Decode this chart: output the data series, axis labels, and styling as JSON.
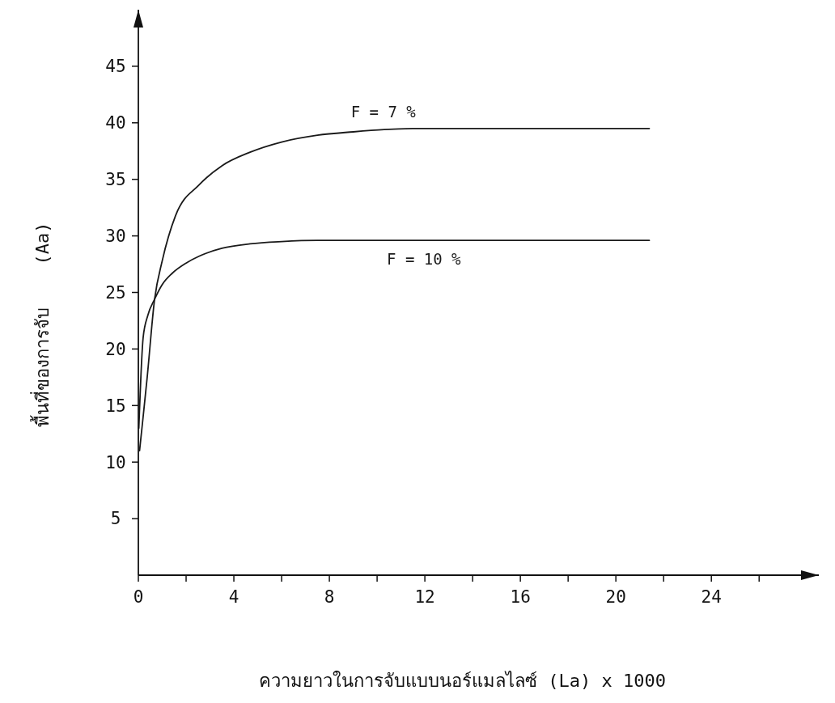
{
  "chart_data": {
    "type": "line",
    "xlabel": "ความยาวในการจับแบบนอร์แมลไลซ์ (La) x 1000",
    "ylabel": "พื้นที่ของการจับ    (Aa)",
    "xlim": [
      0,
      28.5
    ],
    "ylim": [
      0,
      50
    ],
    "xticks": [
      0,
      {
        "value": 2,
        "label": null
      },
      4,
      {
        "value": 6,
        "label": null
      },
      8,
      {
        "value": 10,
        "label": null
      },
      12,
      {
        "value": 14,
        "label": null
      },
      16,
      {
        "value": 18,
        "label": null
      },
      20,
      {
        "value": 22,
        "label": null
      },
      24,
      {
        "value": 26,
        "label": null
      }
    ],
    "yticks": [
      5,
      10,
      15,
      20,
      25,
      30,
      35,
      40,
      45
    ],
    "grid": false,
    "legend": false,
    "marker": "none",
    "line_style": "solid",
    "series": [
      {
        "name": "F = 7 %",
        "color": "#1a1a1a",
        "x": [
          0.05,
          0.2,
          0.37,
          0.68,
          1.0,
          1.56,
          2.54,
          3.5,
          4.68,
          6,
          7.5,
          9,
          10.3,
          12,
          14,
          17,
          21.4
        ],
        "values": [
          11,
          14,
          17.5,
          24.4,
          27.8,
          31.8,
          34.5,
          36.2,
          37.4,
          38.3,
          38.9,
          39.2,
          39.4,
          39.5,
          39.5,
          39.5,
          39.5
        ]
      },
      {
        "name": "F = 10 %",
        "color": "#1a1a1a",
        "x": [
          0.02,
          0.2,
          0.4,
          0.68,
          1.0,
          1.42,
          2.0,
          2.54,
          3.5,
          4.68,
          6,
          7.5,
          10,
          14,
          21.4
        ],
        "values": [
          13,
          21,
          23,
          24.4,
          25.7,
          26.7,
          27.6,
          28.2,
          28.9,
          29.3,
          29.5,
          29.6,
          29.6,
          29.6,
          29.6
        ]
      }
    ]
  }
}
